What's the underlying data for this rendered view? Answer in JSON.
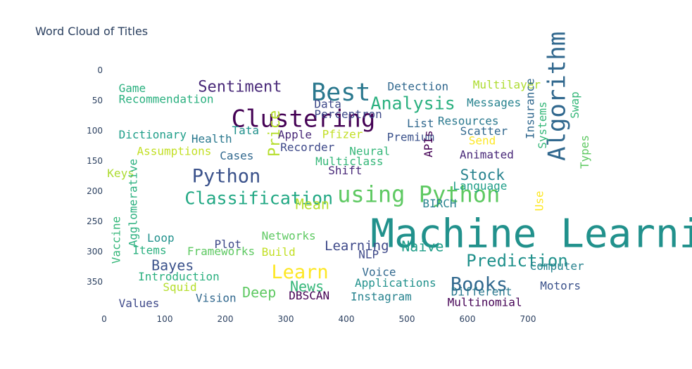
{
  "chart_data": {
    "type": "wordcloud",
    "title": "Word Cloud of Titles",
    "xlabel": "",
    "ylabel": "",
    "xlim": [
      0,
      700
    ],
    "ylim": [
      0,
      350
    ],
    "x_ticks": [
      0,
      100,
      200,
      300,
      400,
      500,
      600,
      700
    ],
    "y_ticks": [
      0,
      50,
      100,
      150,
      200,
      250,
      300,
      350
    ],
    "grid": false,
    "words": [
      {
        "text": "Machine Learning",
        "x": 440,
        "y": 245,
        "size": 56,
        "color": "#21918c",
        "rotate": 0
      },
      {
        "text": "Clustering",
        "x": 210,
        "y": 65,
        "size": 34,
        "color": "#440154",
        "rotate": 0
      },
      {
        "text": "Best",
        "x": 342,
        "y": 21,
        "size": 35,
        "color": "#2a788e",
        "rotate": 0
      },
      {
        "text": "Algorithm",
        "x": 732,
        "y": 150,
        "size": 34,
        "color": "#31688e",
        "rotate": -90
      },
      {
        "text": "using Python",
        "x": 385,
        "y": 190,
        "size": 32,
        "color": "#5ec962",
        "rotate": 0
      },
      {
        "text": "Analysis",
        "x": 440,
        "y": 43,
        "size": 25,
        "color": "#2ab07f",
        "rotate": 0
      },
      {
        "text": "Python",
        "x": 145,
        "y": 163,
        "size": 27,
        "color": "#3b528b",
        "rotate": 0
      },
      {
        "text": "Classification",
        "x": 133,
        "y": 200,
        "size": 25,
        "color": "#22a884",
        "rotate": 0
      },
      {
        "text": "Learn",
        "x": 276,
        "y": 322,
        "size": 27,
        "color": "#fde725",
        "rotate": 0
      },
      {
        "text": "Books",
        "x": 572,
        "y": 342,
        "size": 27,
        "color": "#31688e",
        "rotate": 0
      },
      {
        "text": "Prediction",
        "x": 598,
        "y": 304,
        "size": 24,
        "color": "#21918c",
        "rotate": 0
      },
      {
        "text": "Sentiment",
        "x": 155,
        "y": 18,
        "size": 22,
        "color": "#482878",
        "rotate": 0
      },
      {
        "text": "Price",
        "x": 272,
        "y": 143,
        "size": 22,
        "color": "#b5de2b",
        "rotate": -90
      },
      {
        "text": "Stock",
        "x": 588,
        "y": 164,
        "size": 21,
        "color": "#26828e",
        "rotate": 0
      },
      {
        "text": "Mean",
        "x": 316,
        "y": 212,
        "size": 20,
        "color": "#b5de2b",
        "rotate": 0
      },
      {
        "text": "News",
        "x": 307,
        "y": 348,
        "size": 20,
        "color": "#35b779",
        "rotate": 0
      },
      {
        "text": "Deep",
        "x": 228,
        "y": 358,
        "size": 20,
        "color": "#5ec962",
        "rotate": 0
      },
      {
        "text": "Bayes",
        "x": 78,
        "y": 313,
        "size": 20,
        "color": "#3b528b",
        "rotate": 0
      },
      {
        "text": "Naive",
        "x": 491,
        "y": 282,
        "size": 20,
        "color": "#1f9e89",
        "rotate": 0
      },
      {
        "text": "Learning",
        "x": 364,
        "y": 282,
        "size": 19,
        "color": "#3e4989",
        "rotate": 0
      },
      {
        "text": "Detection",
        "x": 468,
        "y": 19,
        "size": 16,
        "color": "#31688e",
        "rotate": 0
      },
      {
        "text": "Multilayer",
        "x": 609,
        "y": 16,
        "size": 16,
        "color": "#addc30",
        "rotate": 0
      },
      {
        "text": "Game",
        "x": 24,
        "y": 22,
        "size": 16,
        "color": "#2ab07f",
        "rotate": 0
      },
      {
        "text": "Recommendation",
        "x": 24,
        "y": 40,
        "size": 16,
        "color": "#2ab07f",
        "rotate": 0
      },
      {
        "text": "Data",
        "x": 347,
        "y": 48,
        "size": 16,
        "color": "#3e4989",
        "rotate": 0
      },
      {
        "text": "Messages",
        "x": 599,
        "y": 46,
        "size": 16,
        "color": "#26828e",
        "rotate": 0
      },
      {
        "text": "Perceptron",
        "x": 347,
        "y": 65,
        "size": 16,
        "color": "#3e4989",
        "rotate": 0
      },
      {
        "text": "List",
        "x": 500,
        "y": 80,
        "size": 16,
        "color": "#31688e",
        "rotate": 0
      },
      {
        "text": "Resources",
        "x": 551,
        "y": 76,
        "size": 16,
        "color": "#2a788e",
        "rotate": 0
      },
      {
        "text": "Dictionary",
        "x": 24,
        "y": 99,
        "size": 16,
        "color": "#1f9e89",
        "rotate": 0
      },
      {
        "text": "Tata",
        "x": 211,
        "y": 92,
        "size": 16,
        "color": "#21918c",
        "rotate": 0
      },
      {
        "text": "Health",
        "x": 144,
        "y": 106,
        "size": 16,
        "color": "#2a788e",
        "rotate": 0
      },
      {
        "text": "Apple",
        "x": 287,
        "y": 99,
        "size": 16,
        "color": "#482878",
        "rotate": 0
      },
      {
        "text": "Pfizer",
        "x": 360,
        "y": 98,
        "size": 16,
        "color": "#c2df23",
        "rotate": 0
      },
      {
        "text": "Premium",
        "x": 467,
        "y": 103,
        "size": 16,
        "color": "#3b528b",
        "rotate": 0
      },
      {
        "text": "Scatter",
        "x": 588,
        "y": 93,
        "size": 16,
        "color": "#31688e",
        "rotate": 0
      },
      {
        "text": "Send",
        "x": 602,
        "y": 109,
        "size": 16,
        "color": "#fde725",
        "rotate": 0
      },
      {
        "text": "Insurance",
        "x": 696,
        "y": 114,
        "size": 16,
        "color": "#31688e",
        "rotate": -90
      },
      {
        "text": "Systems",
        "x": 716,
        "y": 130,
        "size": 16,
        "color": "#35b779",
        "rotate": -90
      },
      {
        "text": "Swap",
        "x": 770,
        "y": 80,
        "size": 16,
        "color": "#35b779",
        "rotate": -90
      },
      {
        "text": "Types",
        "x": 786,
        "y": 163,
        "size": 16,
        "color": "#5ec962",
        "rotate": -90
      },
      {
        "text": "Assumptions",
        "x": 54,
        "y": 126,
        "size": 16,
        "color": "#c2df23",
        "rotate": 0
      },
      {
        "text": "Recorder",
        "x": 291,
        "y": 120,
        "size": 16,
        "color": "#3e4989",
        "rotate": 0
      },
      {
        "text": "Neural",
        "x": 405,
        "y": 126,
        "size": 16,
        "color": "#35b779",
        "rotate": 0
      },
      {
        "text": "Animated",
        "x": 587,
        "y": 132,
        "size": 16,
        "color": "#482878",
        "rotate": 0
      },
      {
        "text": "APIs",
        "x": 528,
        "y": 144,
        "size": 16,
        "color": "#440154",
        "rotate": -90
      },
      {
        "text": "Cases",
        "x": 191,
        "y": 134,
        "size": 16,
        "color": "#31688e",
        "rotate": 0
      },
      {
        "text": "Multiclass",
        "x": 349,
        "y": 143,
        "size": 16,
        "color": "#35b779",
        "rotate": 0
      },
      {
        "text": "Shift",
        "x": 370,
        "y": 158,
        "size": 16,
        "color": "#482878",
        "rotate": 0
      },
      {
        "text": "Keys",
        "x": 5,
        "y": 163,
        "size": 16,
        "color": "#addc30",
        "rotate": 0
      },
      {
        "text": "Language",
        "x": 576,
        "y": 184,
        "size": 16,
        "color": "#1f9e89",
        "rotate": 0
      },
      {
        "text": "BIRCH",
        "x": 526,
        "y": 213,
        "size": 16,
        "color": "#26828e",
        "rotate": 0
      },
      {
        "text": "Agglomerative",
        "x": 40,
        "y": 292,
        "size": 16,
        "color": "#2ab07f",
        "rotate": -90
      },
      {
        "text": "Vaccine",
        "x": 12,
        "y": 320,
        "size": 16,
        "color": "#35b779",
        "rotate": -90
      },
      {
        "text": "Use",
        "x": 711,
        "y": 233,
        "size": 16,
        "color": "#fde725",
        "rotate": -90
      },
      {
        "text": "Loop",
        "x": 71,
        "y": 270,
        "size": 16,
        "color": "#21918c",
        "rotate": 0
      },
      {
        "text": "Networks",
        "x": 260,
        "y": 266,
        "size": 16,
        "color": "#5ec962",
        "rotate": 0
      },
      {
        "text": "Plot",
        "x": 182,
        "y": 280,
        "size": 16,
        "color": "#3e4989",
        "rotate": 0
      },
      {
        "text": "Items",
        "x": 47,
        "y": 290,
        "size": 16,
        "color": "#2ab07f",
        "rotate": 0
      },
      {
        "text": "Frameworks",
        "x": 137,
        "y": 292,
        "size": 16,
        "color": "#5ec962",
        "rotate": 0
      },
      {
        "text": "Build",
        "x": 260,
        "y": 293,
        "size": 16,
        "color": "#c2df23",
        "rotate": 0
      },
      {
        "text": "NLP",
        "x": 420,
        "y": 297,
        "size": 16,
        "color": "#3e4989",
        "rotate": 0
      },
      {
        "text": "Computer",
        "x": 703,
        "y": 316,
        "size": 16,
        "color": "#26828e",
        "rotate": 0
      },
      {
        "text": "Voice",
        "x": 426,
        "y": 326,
        "size": 16,
        "color": "#31688e",
        "rotate": 0
      },
      {
        "text": "Introduction",
        "x": 56,
        "y": 334,
        "size": 16,
        "color": "#2ab07f",
        "rotate": 0
      },
      {
        "text": "Applications",
        "x": 414,
        "y": 344,
        "size": 16,
        "color": "#21918c",
        "rotate": 0
      },
      {
        "text": "Squid",
        "x": 97,
        "y": 351,
        "size": 16,
        "color": "#b5de2b",
        "rotate": 0
      },
      {
        "text": "Motors",
        "x": 720,
        "y": 349,
        "size": 16,
        "color": "#3b528b",
        "rotate": 0
      },
      {
        "text": "Different",
        "x": 573,
        "y": 359,
        "size": 16,
        "color": "#2a788e",
        "rotate": 0
      },
      {
        "text": "Vision",
        "x": 151,
        "y": 369,
        "size": 16,
        "color": "#31688e",
        "rotate": 0
      },
      {
        "text": "DBSCAN",
        "x": 305,
        "y": 365,
        "size": 16,
        "color": "#440154",
        "rotate": 0
      },
      {
        "text": "Instagram",
        "x": 407,
        "y": 367,
        "size": 16,
        "color": "#26828e",
        "rotate": 0
      },
      {
        "text": "Multinomial",
        "x": 567,
        "y": 376,
        "size": 16,
        "color": "#440154",
        "rotate": 0
      },
      {
        "text": "Values",
        "x": 24,
        "y": 378,
        "size": 16,
        "color": "#3e4989",
        "rotate": 0
      }
    ]
  }
}
